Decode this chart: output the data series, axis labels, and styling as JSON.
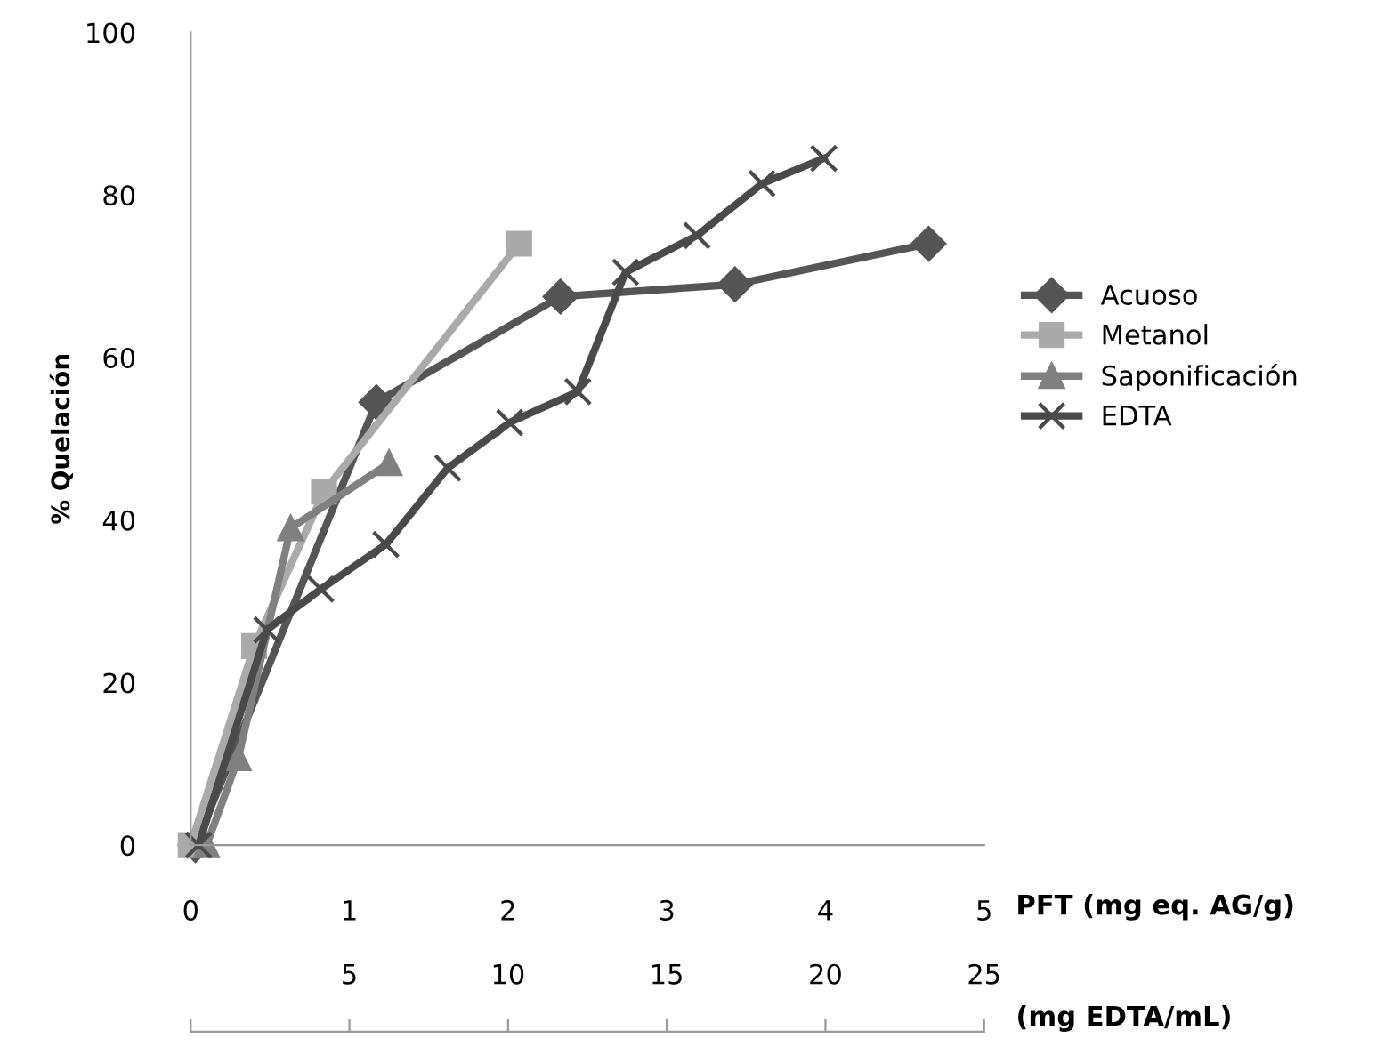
{
  "chart_data": {
    "type": "line",
    "ylabel": "% Quelación",
    "xlabel": "PFT (mg eq. AG/g)",
    "x2label": "(mg EDTA/mL)",
    "xlim": [
      0,
      5
    ],
    "xticks": [
      0,
      1,
      2,
      3,
      4,
      5
    ],
    "ylim": [
      0,
      100
    ],
    "yticks": [
      0,
      20,
      40,
      60,
      80,
      100
    ],
    "x2lim": [
      0,
      25
    ],
    "x2ticks": [
      {
        "value": 0,
        "label": null
      },
      5,
      10,
      15,
      20,
      25
    ],
    "grid": false,
    "legend": "right",
    "series": [
      {
        "name": "Acuoso",
        "color": "#555555",
        "marker": "diamond",
        "x": [
          0.03,
          1.17,
          2.33,
          3.43,
          4.65
        ],
        "values": [
          0,
          54.5,
          67.5,
          69,
          74
        ]
      },
      {
        "name": "Metanol",
        "color": "#aaaaaa",
        "marker": "square",
        "x": [
          0,
          0.4,
          0.84,
          2.07
        ],
        "values": [
          0,
          24.5,
          43.5,
          74
        ]
      },
      {
        "name": "Saponificación",
        "color": "#808080",
        "marker": "triangle",
        "x": [
          0.1,
          0.3,
          0.63,
          1.25
        ],
        "values": [
          0,
          10.7,
          39,
          47
        ]
      },
      {
        "name": "EDTA",
        "color": "#4a4a4a",
        "marker": "cross",
        "x": [
          0.05,
          0.48,
          0.82,
          1.23,
          1.62,
          2.01,
          2.44,
          2.74,
          3.19,
          3.6,
          3.99
        ],
        "values": [
          0,
          26.5,
          31.5,
          37,
          46.4,
          52,
          55.8,
          70.5,
          75,
          81.4,
          84.5
        ]
      }
    ]
  }
}
